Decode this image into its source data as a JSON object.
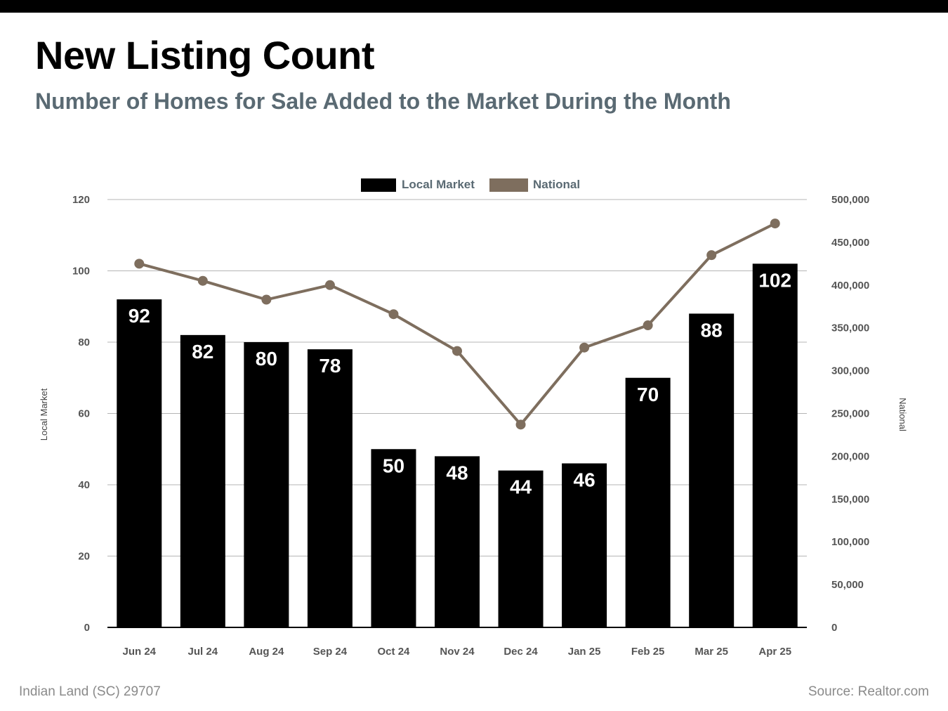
{
  "title": "New Listing Count",
  "subtitle": "Number of Homes for Sale Added to the Market During the Month",
  "footer": {
    "location": "Indian Land (SC) 29707",
    "source": "Source: Realtor.com"
  },
  "colors": {
    "bar": "#000000",
    "line": "#7e6e5e",
    "subtitle": "#5a6a73",
    "grid": "#b5b5b5",
    "axis_text": "#555555"
  },
  "chart_data": {
    "type": "bar",
    "categories": [
      "Jun 24",
      "Jul 24",
      "Aug 24",
      "Sep 24",
      "Oct 24",
      "Nov 24",
      "Dec 24",
      "Jan 25",
      "Feb 25",
      "Mar 25",
      "Apr 25"
    ],
    "series": [
      {
        "name": "Local Market",
        "type": "bar",
        "axis": "left",
        "values": [
          92,
          82,
          80,
          78,
          50,
          48,
          44,
          46,
          70,
          88,
          102
        ]
      },
      {
        "name": "National",
        "type": "line",
        "axis": "right",
        "values": [
          425000,
          405000,
          383000,
          400000,
          366000,
          323000,
          237000,
          327000,
          353000,
          435000,
          472000
        ]
      }
    ],
    "ylabel": "Local Market",
    "y2label": "National",
    "ylim": [
      0,
      120
    ],
    "y2lim": [
      0,
      500000
    ],
    "yticks": [
      "0",
      "20",
      "40",
      "60",
      "80",
      "100",
      "120"
    ],
    "y2ticks": [
      "0",
      "50,000",
      "100,000",
      "150,000",
      "200,000",
      "250,000",
      "300,000",
      "350,000",
      "400,000",
      "450,000",
      "500,000"
    ],
    "grid": true,
    "legend_position": "top-center"
  }
}
